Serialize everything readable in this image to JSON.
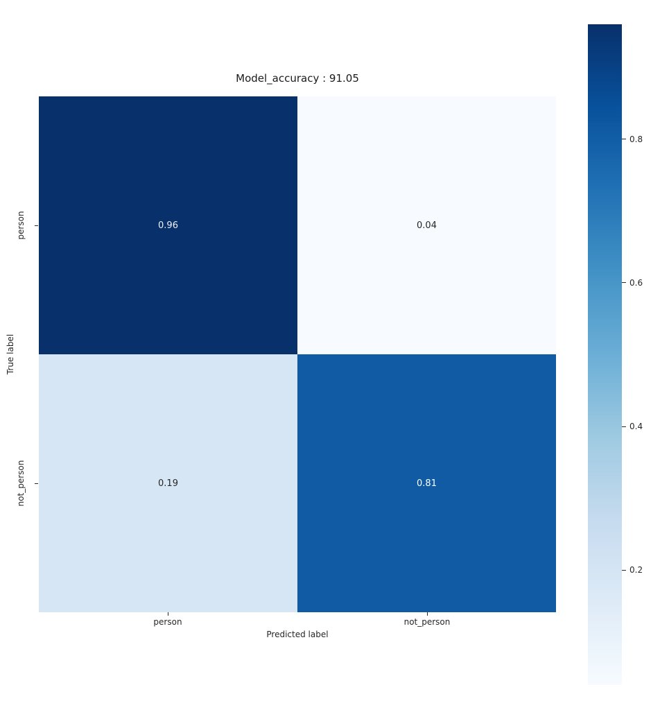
{
  "title": "Model_accuracy : 91.05",
  "chart_data": {
    "type": "heatmap",
    "title": "Model_accuracy : 91.05",
    "xlabel": "Predicted label",
    "ylabel": "True label",
    "x_categories": [
      "person",
      "not_person"
    ],
    "y_categories": [
      "person",
      "not_person"
    ],
    "matrix": [
      [
        0.96,
        0.04
      ],
      [
        0.19,
        0.81
      ]
    ],
    "cells": [
      {
        "row": "person",
        "col": "person",
        "value": "0.96",
        "color": "#08306b",
        "text_color": "#eef1f6"
      },
      {
        "row": "person",
        "col": "not_person",
        "value": "0.04",
        "color": "#f7fbff",
        "text_color": "#262626"
      },
      {
        "row": "not_person",
        "col": "person",
        "value": "0.19",
        "color": "#d7e6f5",
        "text_color": "#262626"
      },
      {
        "row": "not_person",
        "col": "not_person",
        "value": "0.81",
        "color": "#105ba4",
        "text_color": "#ffffff"
      }
    ],
    "colormap": "Blues",
    "vmin": 0.04,
    "vmax": 0.96,
    "grid": false,
    "legend_position": "right-colorbar",
    "colorbar": {
      "ticks": [
        0.8,
        0.6,
        0.4,
        0.2
      ],
      "gradient_stops": [
        "#08306b",
        "#08519c",
        "#2171b5",
        "#4292c6",
        "#6baed6",
        "#9ecae1",
        "#c6dbef",
        "#deebf7",
        "#f7fbff"
      ]
    }
  }
}
